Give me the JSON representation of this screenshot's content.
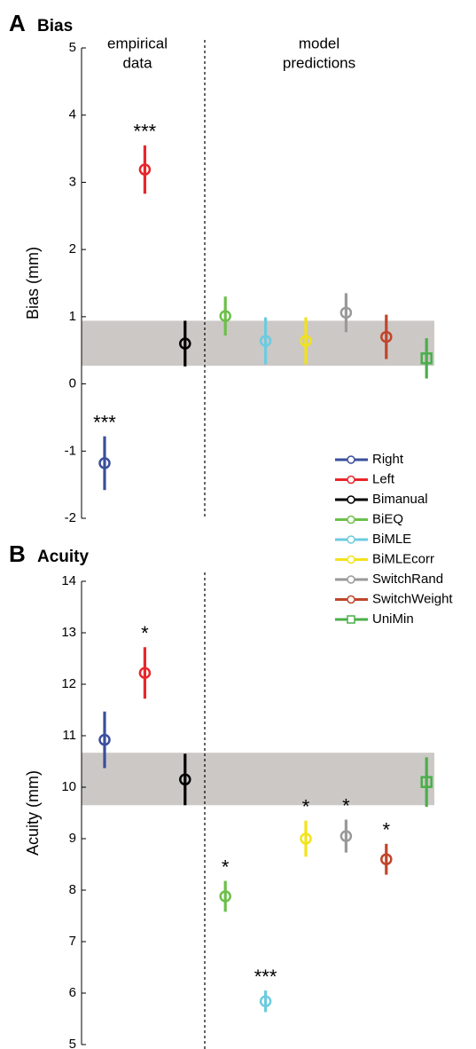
{
  "chart_data": [
    {
      "type": "errorbar",
      "panel": "A",
      "title": "Bias",
      "ylabel": "Bias (mm)",
      "ylim": [
        -2,
        5
      ],
      "yticks": [
        -2,
        -1,
        0,
        1,
        2,
        3,
        4,
        5
      ],
      "band": [
        0.27,
        0.94
      ],
      "values": [
        -1.18,
        3.19,
        0.6,
        1.01,
        0.64,
        0.64,
        1.06,
        0.7,
        0.38
      ],
      "errors": [
        0.4,
        0.36,
        0.34,
        0.29,
        0.35,
        0.35,
        0.29,
        0.33,
        0.3
      ],
      "annotations": [
        "***",
        "***",
        null,
        null,
        null,
        null,
        null,
        null,
        null
      ]
    },
    {
      "type": "errorbar",
      "panel": "B",
      "title": "Acuity",
      "ylabel": "Acuity (mm)",
      "ylim": [
        5,
        14
      ],
      "yticks": [
        5,
        6,
        7,
        8,
        9,
        10,
        11,
        12,
        13,
        14
      ],
      "band": [
        9.65,
        10.67
      ],
      "values": [
        10.92,
        12.22,
        10.15,
        7.88,
        5.84,
        9.0,
        9.05,
        8.6,
        10.1
      ],
      "errors": [
        0.55,
        0.5,
        0.5,
        0.3,
        0.21,
        0.35,
        0.32,
        0.3,
        0.48
      ],
      "annotations": [
        null,
        "*",
        null,
        "*",
        "***",
        "*",
        "*",
        "*",
        null
      ]
    }
  ],
  "group_labels": [
    [
      "empirical",
      "data"
    ],
    [
      "model",
      "predictions"
    ]
  ],
  "legend": {
    "names": [
      "Right",
      "Left",
      "Bimanual",
      "BiEQ",
      "BiMLE",
      "BiMLEcorr",
      "SwitchRand",
      "SwitchWeight",
      "UniMin"
    ],
    "colors": [
      "#3a4f9c",
      "#e8262b",
      "#000000",
      "#6cbf4a",
      "#6ccbe0",
      "#f2e21a",
      "#999999",
      "#c0442a",
      "#4aaf4a"
    ],
    "markers": [
      "circle",
      "circle",
      "circle",
      "circle",
      "circle",
      "circle",
      "circle",
      "circle",
      "square"
    ]
  }
}
